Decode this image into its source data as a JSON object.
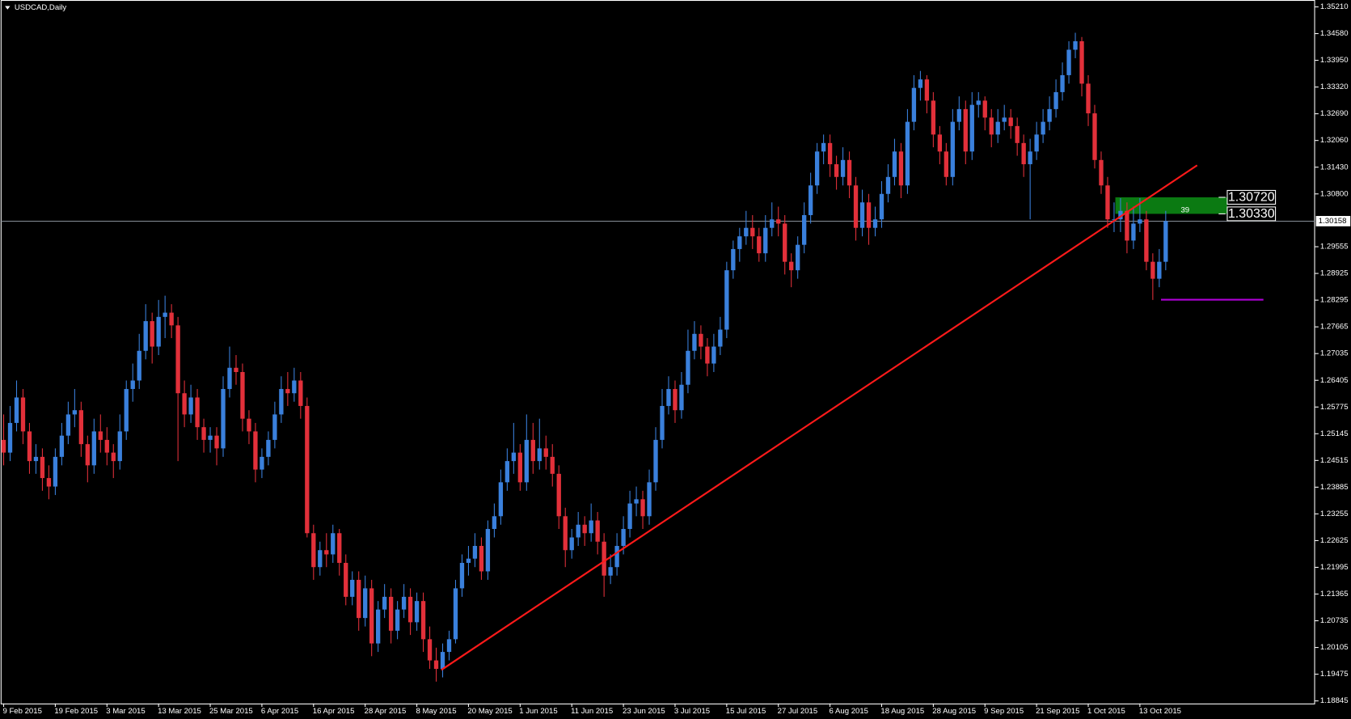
{
  "chart_data": {
    "type": "candlestick",
    "title": "USDCAD,Daily",
    "ylim": [
      1.18845,
      1.3521
    ],
    "yticks": [
      {
        "value": 1.18845,
        "label": "1.18845"
      },
      {
        "value": 1.19475,
        "label": "1.19475"
      },
      {
        "value": 1.20105,
        "label": "1.20105"
      },
      {
        "value": 1.20735,
        "label": "1.20735"
      },
      {
        "value": 1.21365,
        "label": "1.21365"
      },
      {
        "value": 1.21995,
        "label": "1.21995"
      },
      {
        "value": 1.22625,
        "label": "1.22625"
      },
      {
        "value": 1.23255,
        "label": "1.23255"
      },
      {
        "value": 1.23885,
        "label": "1.23885"
      },
      {
        "value": 1.24515,
        "label": "1.24515"
      },
      {
        "value": 1.25145,
        "label": "1.25145"
      },
      {
        "value": 1.25775,
        "label": "1.25775"
      },
      {
        "value": 1.26405,
        "label": "1.26405"
      },
      {
        "value": 1.27035,
        "label": "1.27035"
      },
      {
        "value": 1.27665,
        "label": "1.27665"
      },
      {
        "value": 1.28295,
        "label": "1.28295"
      },
      {
        "value": 1.28925,
        "label": "1.28925"
      },
      {
        "value": 1.29555,
        "label": "1.29555"
      },
      {
        "value": 1.308,
        "label": "1.30800"
      },
      {
        "value": 1.3143,
        "label": "1.31430"
      },
      {
        "value": 1.3206,
        "label": "1.32060"
      },
      {
        "value": 1.3269,
        "label": "1.32690"
      },
      {
        "value": 1.3332,
        "label": "1.33320"
      },
      {
        "value": 1.3395,
        "label": "1.33950"
      },
      {
        "value": 1.3458,
        "label": "1.34580"
      },
      {
        "value": 1.3521,
        "label": "1.35210"
      }
    ],
    "last_price": {
      "value": 1.30158,
      "label": "1.30158"
    },
    "levels": [
      {
        "value": 1.3072,
        "label": "1.30720"
      },
      {
        "value": 1.3033,
        "label": "1.30330"
      }
    ],
    "zone_label": "39",
    "up_color": "#3a80dc",
    "down_color": "#e2303a",
    "zone_color": "#0b7a12",
    "categories": [
      "9 Feb 2015",
      null,
      null,
      null,
      null,
      null,
      null,
      null,
      "19 Feb 2015",
      null,
      null,
      null,
      null,
      null,
      null,
      null,
      "3 Mar 2015",
      null,
      null,
      null,
      null,
      null,
      null,
      null,
      "13 Mar 2015",
      null,
      null,
      null,
      null,
      null,
      null,
      null,
      "25 Mar 2015",
      null,
      null,
      null,
      null,
      null,
      null,
      null,
      "6 Apr 2015",
      null,
      null,
      null,
      null,
      null,
      null,
      null,
      "16 Apr 2015",
      null,
      null,
      null,
      null,
      null,
      null,
      null,
      "28 Apr 2015",
      null,
      null,
      null,
      null,
      null,
      null,
      null,
      "8 May 2015",
      null,
      null,
      null,
      null,
      null,
      null,
      null,
      "20 May 2015",
      null,
      null,
      null,
      null,
      null,
      null,
      null,
      "1 Jun 2015",
      null,
      null,
      null,
      null,
      null,
      null,
      null,
      "11 Jun 2015",
      null,
      null,
      null,
      null,
      null,
      null,
      null,
      "23 Jun 2015",
      null,
      null,
      null,
      null,
      null,
      null,
      null,
      "3 Jul 2015",
      null,
      null,
      null,
      null,
      null,
      null,
      null,
      "15 Jul 2015",
      null,
      null,
      null,
      null,
      null,
      null,
      null,
      "27 Jul 2015",
      null,
      null,
      null,
      null,
      null,
      null,
      null,
      "6 Aug 2015",
      null,
      null,
      null,
      null,
      null,
      null,
      null,
      "18 Aug 2015",
      null,
      null,
      null,
      null,
      null,
      null,
      null,
      "28 Aug 2015",
      null,
      null,
      null,
      null,
      null,
      null,
      null,
      "9 Sep 2015",
      null,
      null,
      null,
      null,
      null,
      null,
      null,
      "21 Sep 2015",
      null,
      null,
      null,
      null,
      null,
      null,
      null,
      "1 Oct 2015",
      null,
      null,
      null,
      null,
      null,
      null,
      null,
      "13 Oct 2015",
      null,
      null,
      null,
      null
    ],
    "ohlc": [
      [
        1.25,
        1.256,
        1.244,
        1.247
      ],
      [
        1.247,
        1.258,
        1.245,
        1.254
      ],
      [
        1.254,
        1.264,
        1.252,
        1.26
      ],
      [
        1.26,
        1.262,
        1.249,
        1.252
      ],
      [
        1.252,
        1.254,
        1.242,
        1.245
      ],
      [
        1.245,
        1.249,
        1.242,
        1.246
      ],
      [
        1.246,
        1.248,
        1.238,
        1.241
      ],
      [
        1.241,
        1.244,
        1.236,
        1.239
      ],
      [
        1.239,
        1.248,
        1.237,
        1.246
      ],
      [
        1.246,
        1.254,
        1.244,
        1.251
      ],
      [
        1.251,
        1.259,
        1.249,
        1.256
      ],
      [
        1.256,
        1.262,
        1.253,
        1.257
      ],
      [
        1.257,
        1.259,
        1.246,
        1.249
      ],
      [
        1.249,
        1.251,
        1.24,
        1.244
      ],
      [
        1.244,
        1.255,
        1.242,
        1.252
      ],
      [
        1.252,
        1.256,
        1.247,
        1.25
      ],
      [
        1.25,
        1.253,
        1.244,
        1.247
      ],
      [
        1.247,
        1.249,
        1.241,
        1.245
      ],
      [
        1.245,
        1.256,
        1.243,
        1.252
      ],
      [
        1.252,
        1.264,
        1.25,
        1.262
      ],
      [
        1.262,
        1.268,
        1.259,
        1.264
      ],
      [
        1.264,
        1.275,
        1.262,
        1.271
      ],
      [
        1.271,
        1.282,
        1.269,
        1.278
      ],
      [
        1.278,
        1.28,
        1.268,
        1.272
      ],
      [
        1.272,
        1.283,
        1.27,
        1.279
      ],
      [
        1.279,
        1.284,
        1.274,
        1.28
      ],
      [
        1.28,
        1.282,
        1.274,
        1.277
      ],
      [
        1.277,
        1.279,
        1.245,
        1.261
      ],
      [
        1.261,
        1.264,
        1.253,
        1.256
      ],
      [
        1.256,
        1.263,
        1.254,
        1.26
      ],
      [
        1.26,
        1.262,
        1.25,
        1.253
      ],
      [
        1.253,
        1.255,
        1.247,
        1.25
      ],
      [
        1.25,
        1.253,
        1.247,
        1.251
      ],
      [
        1.251,
        1.253,
        1.244,
        1.248
      ],
      [
        1.248,
        1.265,
        1.246,
        1.262
      ],
      [
        1.262,
        1.272,
        1.26,
        1.267
      ],
      [
        1.267,
        1.27,
        1.263,
        1.266
      ],
      [
        1.266,
        1.268,
        1.252,
        1.255
      ],
      [
        1.255,
        1.257,
        1.249,
        1.252
      ],
      [
        1.252,
        1.254,
        1.24,
        1.243
      ],
      [
        1.243,
        1.248,
        1.241,
        1.246
      ],
      [
        1.246,
        1.252,
        1.244,
        1.25
      ],
      [
        1.25,
        1.259,
        1.248,
        1.256
      ],
      [
        1.256,
        1.265,
        1.254,
        1.262
      ],
      [
        1.262,
        1.266,
        1.258,
        1.261
      ],
      [
        1.261,
        1.267,
        1.259,
        1.264
      ],
      [
        1.264,
        1.266,
        1.255,
        1.258
      ],
      [
        1.258,
        1.26,
        1.227,
        1.228
      ],
      [
        1.228,
        1.23,
        1.217,
        1.22
      ],
      [
        1.22,
        1.226,
        1.218,
        1.224
      ],
      [
        1.224,
        1.228,
        1.22,
        1.223
      ],
      [
        1.223,
        1.23,
        1.221,
        1.228
      ],
      [
        1.228,
        1.229,
        1.218,
        1.221
      ],
      [
        1.221,
        1.223,
        1.211,
        1.213
      ],
      [
        1.213,
        1.219,
        1.211,
        1.217
      ],
      [
        1.217,
        1.219,
        1.205,
        1.208
      ],
      [
        1.208,
        1.218,
        1.206,
        1.215
      ],
      [
        1.215,
        1.217,
        1.199,
        1.202
      ],
      [
        1.202,
        1.212,
        1.2,
        1.21
      ],
      [
        1.21,
        1.216,
        1.208,
        1.213
      ],
      [
        1.213,
        1.215,
        1.202,
        1.205
      ],
      [
        1.205,
        1.212,
        1.203,
        1.21
      ],
      [
        1.21,
        1.216,
        1.208,
        1.213
      ],
      [
        1.213,
        1.215,
        1.204,
        1.207
      ],
      [
        1.207,
        1.214,
        1.205,
        1.212
      ],
      [
        1.212,
        1.214,
        1.2,
        1.203
      ],
      [
        1.203,
        1.206,
        1.196,
        1.198
      ],
      [
        1.198,
        1.201,
        1.193,
        1.196
      ],
      [
        1.196,
        1.202,
        1.194,
        1.2
      ],
      [
        1.2,
        1.205,
        1.198,
        1.203
      ],
      [
        1.203,
        1.217,
        1.202,
        1.215
      ],
      [
        1.215,
        1.223,
        1.213,
        1.221
      ],
      [
        1.221,
        1.225,
        1.218,
        1.222
      ],
      [
        1.222,
        1.228,
        1.22,
        1.225
      ],
      [
        1.225,
        1.227,
        1.217,
        1.219
      ],
      [
        1.219,
        1.231,
        1.217,
        1.229
      ],
      [
        1.229,
        1.235,
        1.227,
        1.232
      ],
      [
        1.232,
        1.243,
        1.23,
        1.24
      ],
      [
        1.24,
        1.248,
        1.238,
        1.245
      ],
      [
        1.245,
        1.254,
        1.242,
        1.247
      ],
      [
        1.247,
        1.249,
        1.238,
        1.24
      ],
      [
        1.24,
        1.256,
        1.238,
        1.25
      ],
      [
        1.25,
        1.254,
        1.242,
        1.245
      ],
      [
        1.245,
        1.255,
        1.243,
        1.248
      ],
      [
        1.248,
        1.251,
        1.243,
        1.246
      ],
      [
        1.246,
        1.249,
        1.239,
        1.242
      ],
      [
        1.242,
        1.244,
        1.229,
        1.232
      ],
      [
        1.232,
        1.234,
        1.22,
        1.224
      ],
      [
        1.224,
        1.229,
        1.222,
        1.227
      ],
      [
        1.227,
        1.233,
        1.225,
        1.23
      ],
      [
        1.23,
        1.232,
        1.225,
        1.228
      ],
      [
        1.228,
        1.235,
        1.226,
        1.231
      ],
      [
        1.231,
        1.233,
        1.223,
        1.226
      ],
      [
        1.226,
        1.228,
        1.213,
        1.218
      ],
      [
        1.218,
        1.223,
        1.216,
        1.22
      ],
      [
        1.22,
        1.228,
        1.218,
        1.225
      ],
      [
        1.225,
        1.232,
        1.223,
        1.229
      ],
      [
        1.229,
        1.238,
        1.227,
        1.235
      ],
      [
        1.235,
        1.239,
        1.232,
        1.236
      ],
      [
        1.236,
        1.238,
        1.229,
        1.232
      ],
      [
        1.232,
        1.243,
        1.23,
        1.24
      ],
      [
        1.24,
        1.253,
        1.238,
        1.25
      ],
      [
        1.25,
        1.262,
        1.248,
        1.258
      ],
      [
        1.258,
        1.265,
        1.256,
        1.262
      ],
      [
        1.262,
        1.264,
        1.254,
        1.257
      ],
      [
        1.257,
        1.266,
        1.255,
        1.263
      ],
      [
        1.263,
        1.276,
        1.261,
        1.271
      ],
      [
        1.271,
        1.278,
        1.269,
        1.275
      ],
      [
        1.275,
        1.277,
        1.269,
        1.272
      ],
      [
        1.272,
        1.274,
        1.265,
        1.268
      ],
      [
        1.268,
        1.275,
        1.266,
        1.272
      ],
      [
        1.272,
        1.279,
        1.27,
        1.276
      ],
      [
        1.276,
        1.292,
        1.274,
        1.29
      ],
      [
        1.29,
        1.297,
        1.288,
        1.295
      ],
      [
        1.295,
        1.3,
        1.292,
        1.298
      ],
      [
        1.298,
        1.304,
        1.296,
        1.3
      ],
      [
        1.3,
        1.303,
        1.295,
        1.298
      ],
      [
        1.298,
        1.3,
        1.292,
        1.294
      ],
      [
        1.294,
        1.303,
        1.292,
        1.3
      ],
      [
        1.3,
        1.306,
        1.298,
        1.302
      ],
      [
        1.302,
        1.305,
        1.298,
        1.301
      ],
      [
        1.301,
        1.303,
        1.289,
        1.292
      ],
      [
        1.292,
        1.294,
        1.286,
        1.29
      ],
      [
        1.29,
        1.298,
        1.288,
        1.296
      ],
      [
        1.296,
        1.306,
        1.294,
        1.303
      ],
      [
        1.303,
        1.313,
        1.301,
        1.31
      ],
      [
        1.31,
        1.32,
        1.308,
        1.318
      ],
      [
        1.318,
        1.322,
        1.315,
        1.32
      ],
      [
        1.32,
        1.322,
        1.312,
        1.315
      ],
      [
        1.315,
        1.317,
        1.309,
        1.312
      ],
      [
        1.312,
        1.319,
        1.31,
        1.316
      ],
      [
        1.316,
        1.318,
        1.307,
        1.31
      ],
      [
        1.31,
        1.312,
        1.297,
        1.3
      ],
      [
        1.3,
        1.309,
        1.298,
        1.306
      ],
      [
        1.306,
        1.308,
        1.296,
        1.3
      ],
      [
        1.3,
        1.305,
        1.298,
        1.302
      ],
      [
        1.302,
        1.311,
        1.3,
        1.308
      ],
      [
        1.308,
        1.315,
        1.306,
        1.312
      ],
      [
        1.312,
        1.321,
        1.31,
        1.318
      ],
      [
        1.318,
        1.32,
        1.307,
        1.31
      ],
      [
        1.31,
        1.328,
        1.308,
        1.325
      ],
      [
        1.325,
        1.336,
        1.323,
        1.333
      ],
      [
        1.333,
        1.337,
        1.33,
        1.335
      ],
      [
        1.335,
        1.336,
        1.327,
        1.33
      ],
      [
        1.33,
        1.332,
        1.319,
        1.322
      ],
      [
        1.322,
        1.324,
        1.315,
        1.318
      ],
      [
        1.318,
        1.32,
        1.31,
        1.312
      ],
      [
        1.312,
        1.328,
        1.31,
        1.325
      ],
      [
        1.325,
        1.331,
        1.323,
        1.328
      ],
      [
        1.328,
        1.33,
        1.315,
        1.318
      ],
      [
        1.318,
        1.332,
        1.316,
        1.329
      ],
      [
        1.329,
        1.332,
        1.326,
        1.33
      ],
      [
        1.33,
        1.331,
        1.323,
        1.326
      ],
      [
        1.326,
        1.328,
        1.319,
        1.322
      ],
      [
        1.322,
        1.328,
        1.32,
        1.325
      ],
      [
        1.325,
        1.329,
        1.323,
        1.326
      ],
      [
        1.326,
        1.328,
        1.321,
        1.324
      ],
      [
        1.324,
        1.326,
        1.317,
        1.32
      ],
      [
        1.32,
        1.322,
        1.312,
        1.315
      ],
      [
        1.315,
        1.321,
        1.302,
        1.318
      ],
      [
        1.318,
        1.325,
        1.316,
        1.322
      ],
      [
        1.322,
        1.328,
        1.32,
        1.325
      ],
      [
        1.325,
        1.331,
        1.323,
        1.328
      ],
      [
        1.328,
        1.335,
        1.326,
        1.332
      ],
      [
        1.332,
        1.339,
        1.33,
        1.336
      ],
      [
        1.336,
        1.344,
        1.334,
        1.342
      ],
      [
        1.342,
        1.346,
        1.34,
        1.344
      ],
      [
        1.344,
        1.345,
        1.331,
        1.334
      ],
      [
        1.334,
        1.336,
        1.324,
        1.327
      ],
      [
        1.327,
        1.329,
        1.314,
        1.316
      ],
      [
        1.316,
        1.318,
        1.308,
        1.31
      ],
      [
        1.31,
        1.312,
        1.3,
        1.302
      ],
      [
        1.302,
        1.306,
        1.299,
        1.302
      ],
      [
        1.302,
        1.307,
        1.299,
        1.304
      ],
      [
        1.304,
        1.306,
        1.294,
        1.297
      ],
      [
        1.297,
        1.305,
        1.295,
        1.301
      ],
      [
        1.301,
        1.307,
        1.299,
        1.302
      ],
      [
        1.302,
        1.304,
        1.29,
        1.292
      ],
      [
        1.292,
        1.294,
        1.283,
        1.288
      ],
      [
        1.288,
        1.295,
        1.286,
        1.292
      ],
      [
        1.292,
        1.304,
        1.29,
        1.3016
      ]
    ]
  }
}
